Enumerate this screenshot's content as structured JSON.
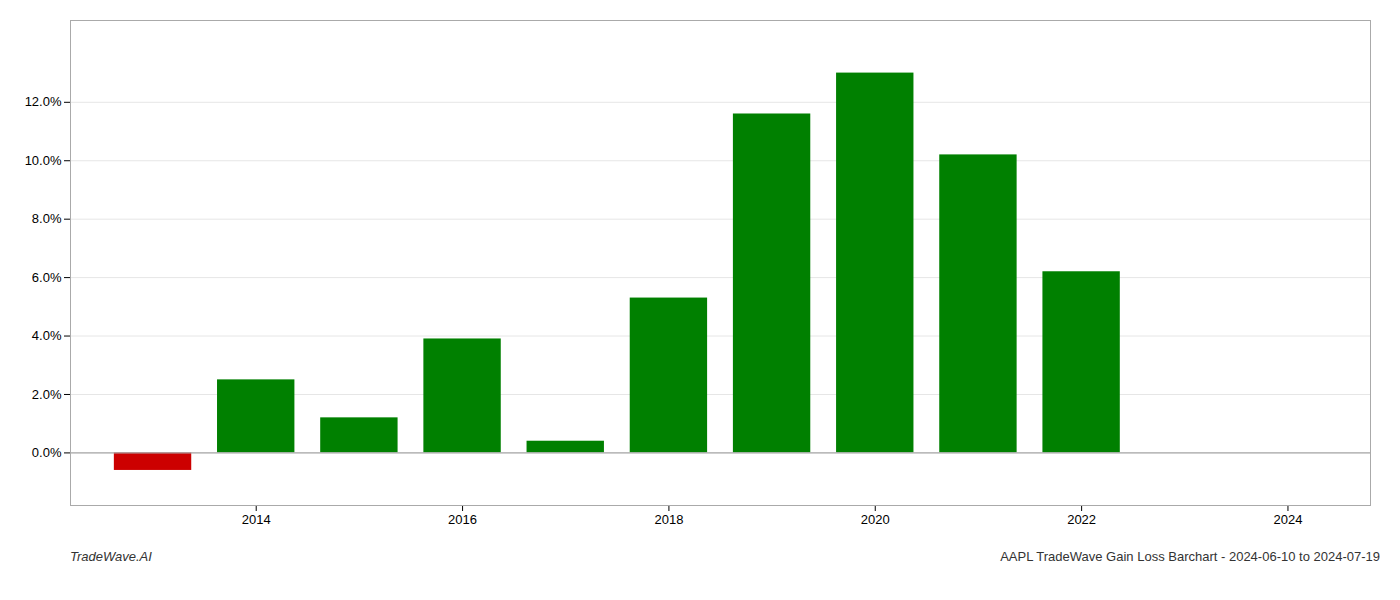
{
  "chart_data": {
    "type": "bar",
    "title": "AAPL TradeWave Gain Loss Barchart - 2024-06-10 to 2024-07-19",
    "annotations": [
      "TradeWave.AI"
    ],
    "x": [
      2013,
      2014,
      2015,
      2016,
      2017,
      2018,
      2019,
      2020,
      2021,
      2022,
      2023
    ],
    "values": [
      -0.006,
      0.025,
      0.012,
      0.039,
      0.004,
      0.053,
      0.116,
      0.13,
      0.102,
      0.062,
      0.0
    ],
    "colors": [
      "#cc0000",
      "#008000",
      "#008000",
      "#008000",
      "#008000",
      "#008000",
      "#008000",
      "#008000",
      "#008000",
      "#008000",
      "#008000"
    ],
    "xlim": [
      2012.2,
      2024.8
    ],
    "xticks": [
      2014,
      2016,
      2018,
      2020,
      2022,
      2024
    ],
    "ylim": [
      -0.018,
      0.148
    ],
    "yticks": [
      {
        "value": 0.0,
        "label": "0.0%"
      },
      {
        "value": 0.02,
        "label": "2.0%"
      },
      {
        "value": 0.04,
        "label": "4.0%"
      },
      {
        "value": 0.06,
        "label": "6.0%"
      },
      {
        "value": 0.08,
        "label": "8.0%"
      },
      {
        "value": 0.1,
        "label": "10.0%"
      },
      {
        "value": 0.12,
        "label": "12.0%"
      }
    ],
    "grid": true
  }
}
